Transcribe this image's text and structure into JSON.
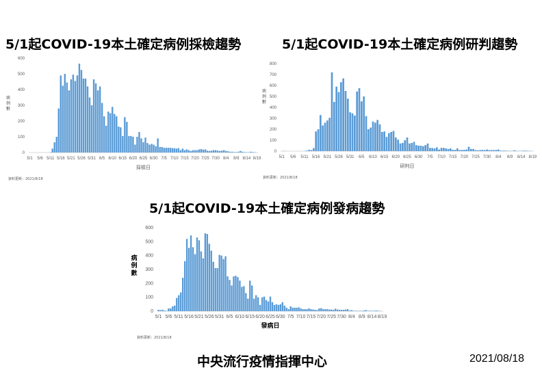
{
  "titles": {
    "chart1": "5/1起COVID-19本土確定病例採檢趨勢",
    "chart2": "5/1起COVID-19本土確定病例研判趨勢",
    "chart3": "5/1起COVID-19本土確定病例發病趨勢"
  },
  "footer": {
    "org": "中央流行疫情指揮中心",
    "date": "2021/08/18"
  },
  "bar_color": "#5b9bd5",
  "chart_data": [
    {
      "type": "bar",
      "title": "5/1起COVID-19本土確定病例採檢趨勢",
      "xlabel": "採檢日",
      "ylabel": "病例數",
      "ylim": [
        0,
        600
      ],
      "yticks": [
        0,
        100,
        200,
        300,
        400,
        500,
        600
      ],
      "tick_labels": [
        "5/1",
        "5/6",
        "5/11",
        "5/16",
        "5/21",
        "5/26",
        "5/31",
        "6/5",
        "6/10",
        "6/15",
        "6/20",
        "6/25",
        "6/30",
        "7/5",
        "7/10",
        "7/15",
        "7/20",
        "7/25",
        "7/30",
        "8/4",
        "8/9",
        "8/14",
        "8/19"
      ],
      "note": "資料更新：2021/8/18",
      "start_date": "5/1",
      "values": [
        0,
        0,
        0,
        0,
        0,
        0,
        0,
        0,
        0,
        0,
        2,
        25,
        65,
        100,
        280,
        490,
        425,
        500,
        445,
        395,
        465,
        495,
        455,
        490,
        565,
        525,
        470,
        470,
        420,
        350,
        300,
        465,
        440,
        395,
        420,
        315,
        230,
        170,
        260,
        250,
        290,
        245,
        230,
        165,
        160,
        105,
        225,
        195,
        105,
        105,
        100,
        50,
        100,
        130,
        90,
        65,
        95,
        60,
        50,
        55,
        50,
        40,
        90,
        35,
        35,
        30,
        30,
        30,
        30,
        28,
        27,
        25,
        28,
        15,
        25,
        15,
        20,
        15,
        10,
        15,
        15,
        15,
        20,
        22,
        18,
        20,
        12,
        10,
        12,
        15,
        15,
        12,
        10,
        12,
        15,
        10,
        8,
        5,
        5,
        3,
        3,
        5,
        10,
        5,
        3,
        2,
        2,
        5,
        3,
        2,
        0
      ],
      "grid": false
    },
    {
      "type": "bar",
      "title": "5/1起COVID-19本土確定病例研判趨勢",
      "xlabel": "研判日",
      "ylabel": "病例數",
      "ylim": [
        0,
        800
      ],
      "yticks": [
        0,
        100,
        200,
        300,
        400,
        500,
        600,
        700,
        800
      ],
      "tick_labels": [
        "5/1",
        "5/6",
        "5/11",
        "5/16",
        "5/21",
        "5/26",
        "5/31",
        "6/5",
        "6/10",
        "6/15",
        "6/20",
        "6/25",
        "6/30",
        "7/5",
        "7/10",
        "7/15",
        "7/20",
        "7/25",
        "7/30",
        "8/4",
        "8/9",
        "8/14",
        "8/19"
      ],
      "note": "資料更新：2021/8/18",
      "start_date": "5/1",
      "values": [
        0,
        2,
        0,
        0,
        0,
        0,
        0,
        0,
        0,
        0,
        2,
        5,
        12,
        10,
        28,
        180,
        200,
        330,
        235,
        260,
        280,
        305,
        720,
        450,
        590,
        540,
        630,
        665,
        550,
        480,
        355,
        345,
        325,
        545,
        575,
        455,
        500,
        320,
        200,
        215,
        270,
        260,
        285,
        245,
        175,
        180,
        130,
        165,
        175,
        185,
        125,
        105,
        70,
        75,
        100,
        125,
        70,
        75,
        85,
        55,
        50,
        50,
        45,
        55,
        70,
        30,
        28,
        25,
        35,
        15,
        30,
        30,
        25,
        20,
        25,
        12,
        12,
        25,
        10,
        12,
        12,
        15,
        40,
        20,
        20,
        10,
        8,
        10,
        12,
        10,
        15,
        10,
        10,
        10,
        12,
        15,
        5,
        5,
        5,
        3,
        3,
        2,
        8,
        3,
        2,
        2,
        5,
        5,
        3,
        2,
        0
      ],
      "grid": false
    },
    {
      "type": "bar",
      "title": "5/1起COVID-19本土確定病例發病趨勢",
      "xlabel": "發病日",
      "ylabel": "病例數",
      "ylim": [
        0,
        600
      ],
      "yticks": [
        0,
        100,
        200,
        300,
        400,
        500,
        600
      ],
      "tick_labels": [
        "5/1",
        "5/6",
        "5/11",
        "5/16",
        "5/21",
        "5/26",
        "5/31",
        "6/5",
        "6/10",
        "6/15",
        "6/20",
        "6/25",
        "6/30",
        "7/5",
        "7/10",
        "7/15",
        "7/20",
        "7/25",
        "7/30",
        "8/4",
        "8/9",
        "8/14",
        "8/19"
      ],
      "note": "資料更新：2021/8/18",
      "start_date": "5/1",
      "values": [
        10,
        8,
        10,
        5,
        3,
        20,
        20,
        35,
        40,
        95,
        115,
        135,
        240,
        360,
        520,
        455,
        545,
        460,
        410,
        530,
        510,
        430,
        380,
        560,
        555,
        485,
        435,
        355,
        310,
        310,
        405,
        400,
        375,
        395,
        250,
        225,
        185,
        250,
        255,
        245,
        220,
        175,
        180,
        130,
        90,
        220,
        185,
        90,
        115,
        100,
        45,
        100,
        105,
        80,
        70,
        105,
        65,
        45,
        50,
        45,
        50,
        65,
        40,
        25,
        15,
        35,
        25,
        25,
        25,
        28,
        20,
        15,
        15,
        15,
        20,
        15,
        12,
        10,
        8,
        20,
        22,
        15,
        15,
        15,
        12,
        12,
        10,
        18,
        12,
        10,
        10,
        10,
        12,
        15,
        5,
        8,
        3,
        3,
        3,
        3,
        3,
        5,
        8,
        3,
        3,
        3,
        3,
        5,
        3,
        2,
        0
      ],
      "grid": false
    }
  ]
}
